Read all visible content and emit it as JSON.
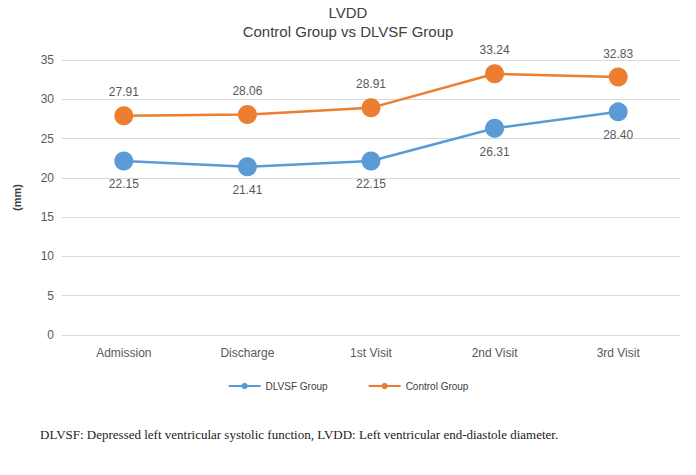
{
  "chart_data": {
    "type": "line",
    "title": "LVDD",
    "subtitle": "Control Group vs DLVSF Group",
    "y_label": "(mm)",
    "caption": "DLVSF: Depressed left ventricular systolic function,  LVDD: Left ventricular end-diastole diameter.",
    "categories": [
      "Admission",
      "Discharge",
      "1st Visit",
      "2nd Visit",
      "3rd Visit"
    ],
    "series": [
      {
        "name": "DLVSF Group",
        "color": "#5b9bd5",
        "values": [
          22.15,
          21.41,
          22.15,
          26.31,
          28.4
        ],
        "value_labels": [
          "22.15",
          "21.41",
          "22.15",
          "26.31",
          "28.40"
        ]
      },
      {
        "name": "Control Group",
        "color": "#ed7d31",
        "values": [
          27.91,
          28.06,
          28.91,
          33.24,
          32.83
        ],
        "value_labels": [
          "27.91",
          "28.06",
          "28.91",
          "33.24",
          "32.83"
        ]
      }
    ],
    "ylim": [
      0,
      35
    ],
    "yticks": [
      0,
      5,
      10,
      15,
      20,
      25,
      30,
      35
    ],
    "grid": true,
    "legend": "bottom",
    "data_labels": true,
    "marker": "circle"
  }
}
